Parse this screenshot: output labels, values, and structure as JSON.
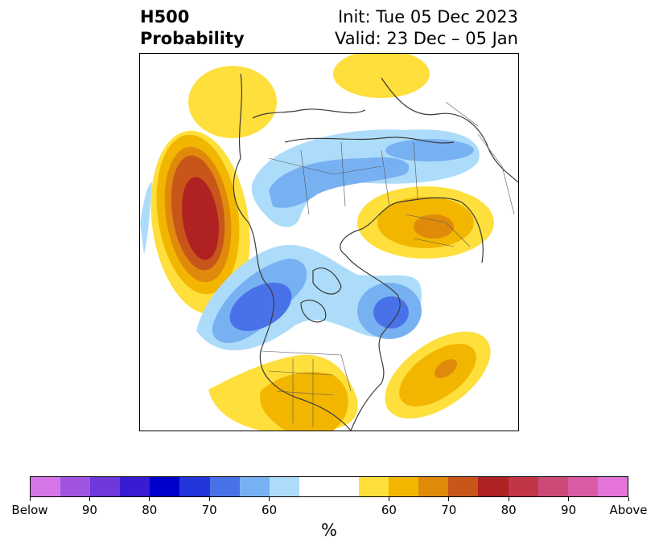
{
  "header": {
    "title_line1": "H500",
    "title_line2": "Probability",
    "init_text": "Init: Tue 05 Dec 2023",
    "valid_text": "Valid: 23 Dec – 05 Jan"
  },
  "colorbar": {
    "unit_label": "%",
    "segments": [
      "#d575e8",
      "#a154e2",
      "#6e38da",
      "#3a1ad3",
      "#0000cc",
      "#2235db",
      "#4a72e8",
      "#78b1f2",
      "#addcfa",
      "#ffffff",
      "#ffffff",
      "#fedf3b",
      "#f2b600",
      "#e08a0c",
      "#c8561a",
      "#b02121",
      "#c23448",
      "#cc4a78",
      "#d95ca4",
      "#e474d8"
    ],
    "tick_labels": [
      "Below",
      "90",
      "80",
      "70",
      "60",
      "60",
      "70",
      "80",
      "90",
      "Above"
    ]
  },
  "map": {
    "colors": {
      "above_50": "#fedf3b",
      "above_60": "#f2b600",
      "above_70": "#e08a0c",
      "above_80": "#c8561a",
      "above_90": "#b02121",
      "below_50": "#addcfa",
      "below_60": "#78b1f2",
      "below_70": "#4a72e8",
      "border": "#3a3a3a"
    }
  }
}
